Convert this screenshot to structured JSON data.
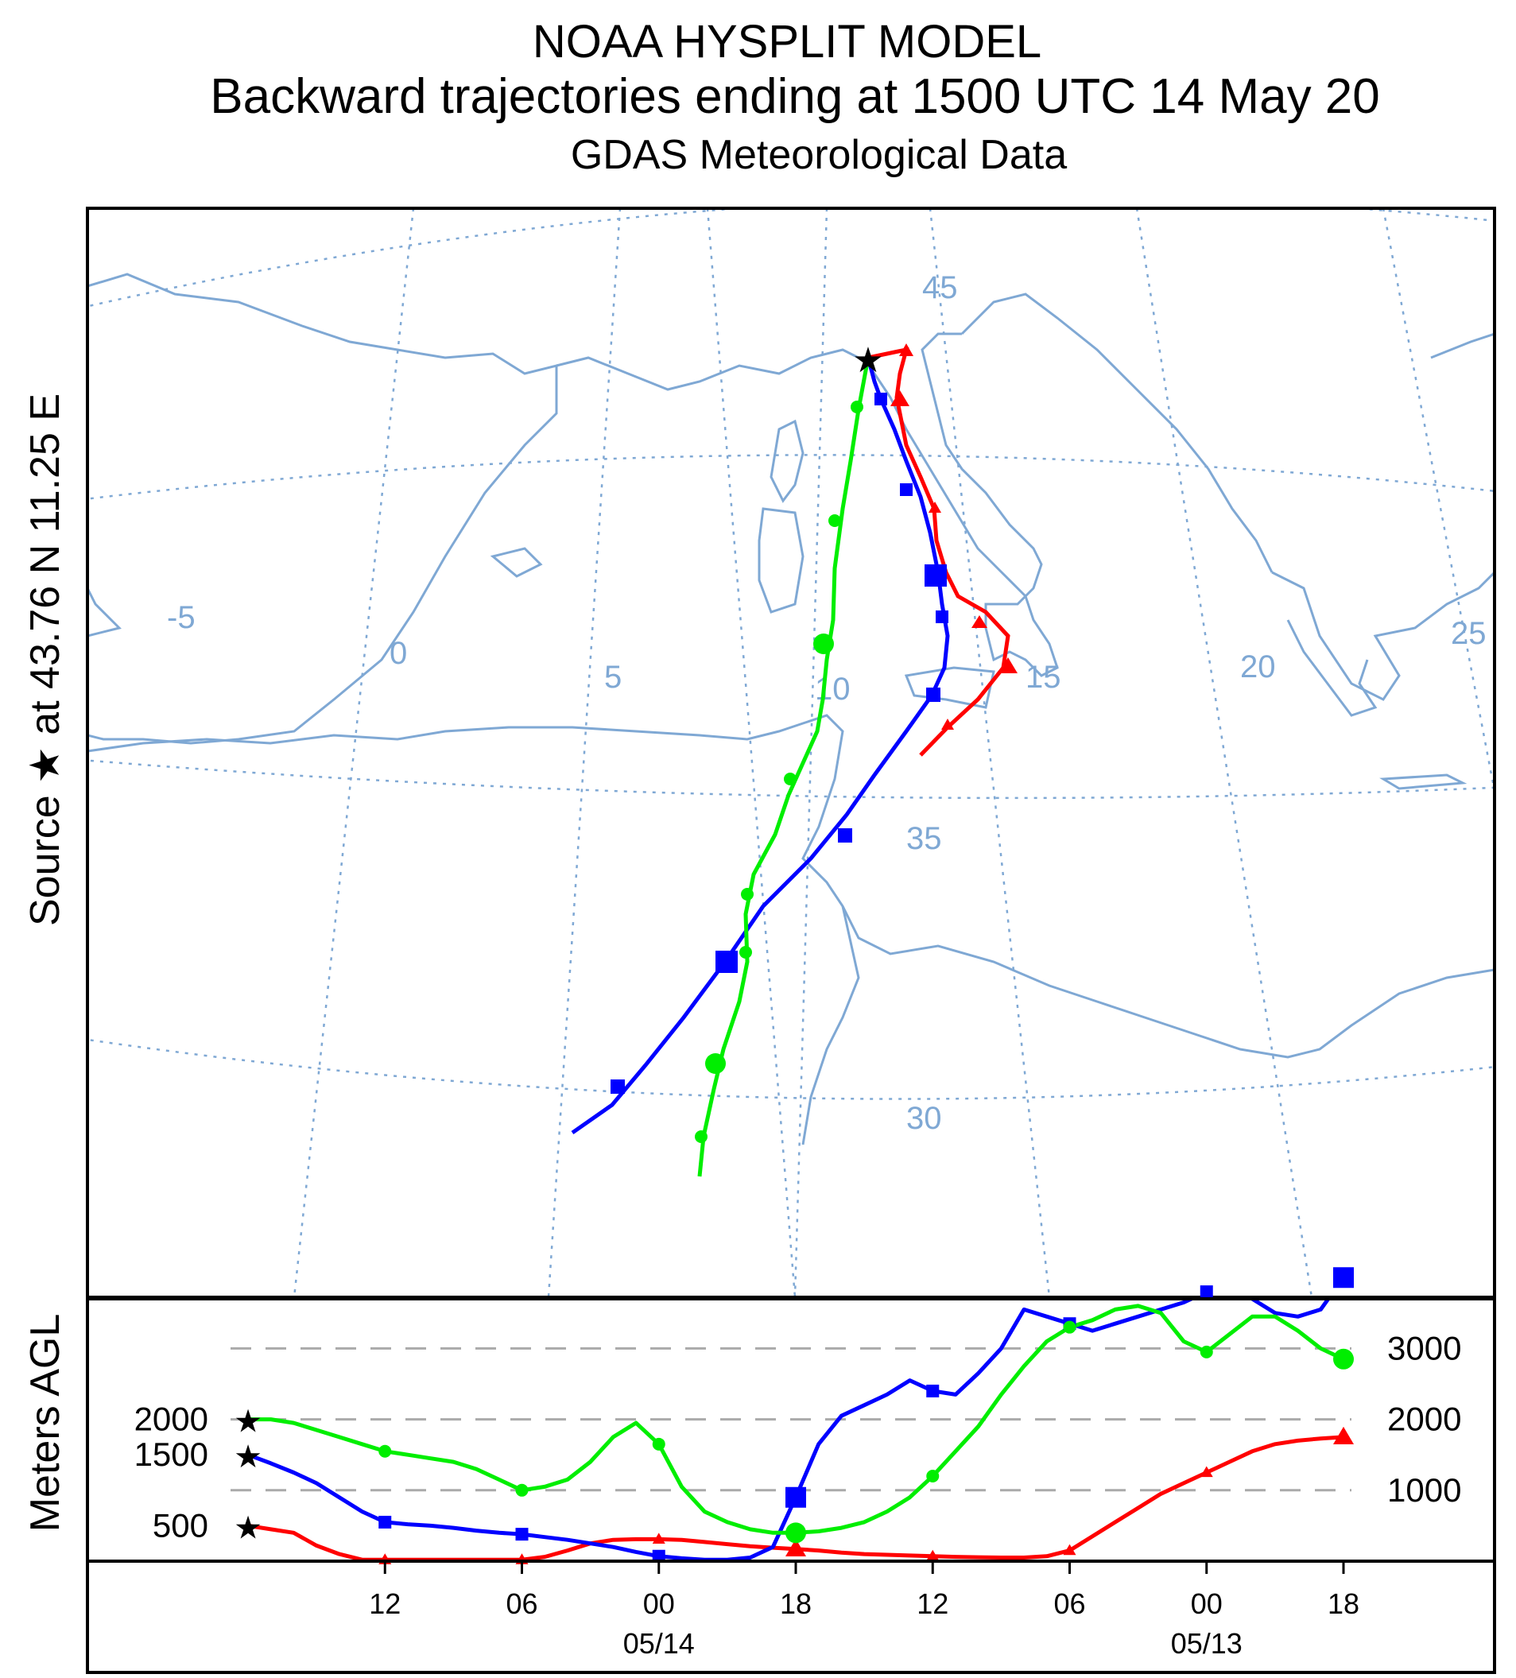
{
  "chart_data": {
    "type": "line",
    "title": "NOAA HYSPLIT MODEL",
    "subtitle": "Backward trajectories ending at 1500 UTC 14 May 20",
    "subtitle2": "GDAS Meteorological Data",
    "source_label": "Source ★ at   43.76 N   11.25 E",
    "source": {
      "lat": 43.76,
      "lon": 11.25
    },
    "map_lat_labels": [
      "45",
      "35",
      "30"
    ],
    "map_lon_labels": [
      "-5",
      "0",
      "5",
      "10",
      "15",
      "20",
      "25"
    ],
    "map_trajectories": [
      {
        "name": "500 m",
        "color": "#ff0000",
        "marker": "triangle"
      },
      {
        "name": "1500 m",
        "color": "#0000ff",
        "marker": "square"
      },
      {
        "name": "2000 m",
        "color": "#00ee00",
        "marker": "circle"
      }
    ],
    "height_panel": {
      "ylabel": "Meters AGL",
      "right_ticks": [
        3000,
        2000,
        1000
      ],
      "left_labels": [
        "2000",
        "1500",
        "500"
      ],
      "x_tick_labels": [
        "12",
        "06",
        "00",
        "18",
        "12",
        "06",
        "00",
        "18"
      ],
      "x_date_labels": [
        "05/14",
        "05/13"
      ],
      "x_unit": "hours before arrival",
      "x_range": [
        0,
        48
      ],
      "ylim": [
        0,
        3700
      ],
      "series": [
        {
          "name": "500 m",
          "color": "#ff0000",
          "x": [
            0,
            1,
            2,
            3,
            4,
            5,
            6,
            7,
            8,
            9,
            10,
            11,
            12,
            13,
            14,
            15,
            16,
            17,
            18,
            19,
            20,
            21,
            22,
            23,
            24,
            25,
            26,
            27,
            28,
            29,
            30,
            31,
            32,
            33,
            34,
            35,
            36,
            37,
            38,
            39,
            40,
            41,
            42,
            43,
            44,
            45,
            46,
            47,
            48
          ],
          "y": [
            500,
            450,
            400,
            220,
            100,
            20,
            20,
            20,
            20,
            20,
            20,
            20,
            20,
            60,
            150,
            250,
            300,
            310,
            310,
            300,
            270,
            240,
            210,
            190,
            170,
            150,
            120,
            100,
            90,
            80,
            70,
            60,
            55,
            50,
            50,
            70,
            150,
            350,
            550,
            750,
            950,
            1100,
            1250,
            1400,
            1550,
            1650,
            1700,
            1730,
            1750
          ]
        },
        {
          "name": "1500 m",
          "color": "#0000ff",
          "x": [
            0,
            1,
            2,
            3,
            4,
            5,
            6,
            7,
            8,
            9,
            10,
            11,
            12,
            13,
            14,
            15,
            16,
            17,
            18,
            19,
            20,
            21,
            22,
            23,
            24,
            25,
            26,
            27,
            28,
            29,
            30,
            31,
            32,
            33,
            34,
            35,
            36,
            37,
            38,
            39,
            40,
            41,
            42,
            43,
            44,
            45,
            46,
            47,
            48
          ],
          "y": [
            1500,
            1380,
            1250,
            1100,
            900,
            700,
            550,
            520,
            500,
            470,
            430,
            400,
            380,
            340,
            300,
            250,
            200,
            130,
            70,
            40,
            20,
            20,
            50,
            200,
            900,
            1650,
            2050,
            2200,
            2350,
            2550,
            2400,
            2350,
            2650,
            3000,
            3550,
            3450,
            3350,
            3250,
            3350,
            3450,
            3550,
            3650,
            3800,
            3850,
            3700,
            3500,
            3450,
            3550,
            4000
          ]
        },
        {
          "name": "2000 m",
          "color": "#00ee00",
          "x": [
            0,
            1,
            2,
            3,
            4,
            5,
            6,
            7,
            8,
            9,
            10,
            11,
            12,
            13,
            14,
            15,
            16,
            17,
            18,
            19,
            20,
            21,
            22,
            23,
            24,
            25,
            26,
            27,
            28,
            29,
            30,
            31,
            32,
            33,
            34,
            35,
            36,
            37,
            38,
            39,
            40,
            41,
            42,
            43,
            44,
            45,
            46,
            47,
            48
          ],
          "y": [
            2000,
            2000,
            1950,
            1850,
            1750,
            1650,
            1550,
            1500,
            1450,
            1400,
            1300,
            1150,
            1000,
            1050,
            1150,
            1400,
            1750,
            1950,
            1650,
            1050,
            700,
            550,
            450,
            400,
            400,
            420,
            470,
            550,
            700,
            900,
            1200,
            1550,
            1900,
            2350,
            2750,
            3100,
            3300,
            3400,
            3550,
            3600,
            3500,
            3100,
            2950,
            3200,
            3450,
            3450,
            3250,
            3000,
            2850
          ]
        }
      ]
    }
  }
}
